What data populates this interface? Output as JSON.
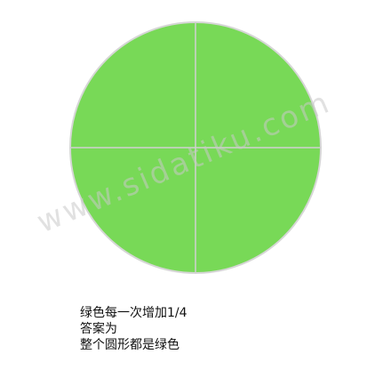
{
  "colors": {
    "fill": "#78D957",
    "outline": "#D6D6D6",
    "divider": "#D0D0D0",
    "watermark": "#C9C9C9",
    "text": "#111111"
  },
  "diagram": {
    "shape": "circle",
    "parts": 4,
    "parts_filled": 4
  },
  "watermark": {
    "text": "www.sidatiku.com"
  },
  "caption": {
    "line1": "绿色每一次增加1/4",
    "line2": "答案为",
    "line3": "整个圆形都是绿色"
  }
}
